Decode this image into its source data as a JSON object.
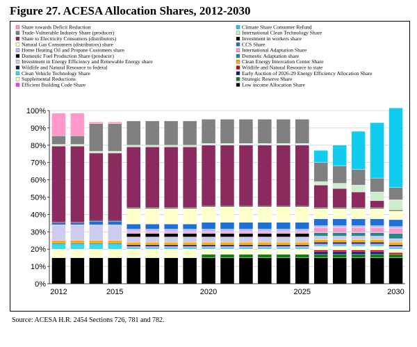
{
  "title": "Figure 27.   ACESA Allocation Shares, 2012-2030",
  "source": "Source:  ACESA H.R. 2454 Sections 726, 781 and 782.",
  "chart_data": {
    "type": "bar",
    "stacked": true,
    "title": "Figure 27.   ACESA Allocation Shares, 2012-2030",
    "xlabel": "",
    "ylabel": "",
    "ylim": [
      0,
      100
    ],
    "categories": [
      "2012",
      "2013",
      "2014",
      "2015",
      "2016",
      "2017",
      "2018",
      "2019",
      "2020",
      "2021",
      "2022",
      "2023",
      "2024",
      "2025",
      "2026",
      "2027",
      "2028",
      "2029",
      "2030"
    ],
    "x_tick_labels": [
      "2012",
      "2015",
      "2020",
      "2025",
      "2030"
    ],
    "y_tick_labels": [
      "0%",
      "10%",
      "20%",
      "30%",
      "40%",
      "50%",
      "60%",
      "70%",
      "80%",
      "90%",
      "100%"
    ],
    "legend_position": "top",
    "series": [
      {
        "name": "Low income Allocation Share",
        "color": "#000000",
        "values": [
          15,
          15,
          15,
          15,
          15,
          15,
          15,
          15,
          15,
          15,
          15,
          15,
          15,
          15,
          15,
          15,
          15,
          15,
          15
        ]
      },
      {
        "name": "Strategic Reserve Share",
        "color": "#1a7a1a",
        "values": [
          0,
          0,
          0,
          0,
          0,
          0,
          0,
          0,
          2,
          2,
          2,
          2,
          2,
          2,
          2,
          2,
          2,
          2,
          2
        ]
      },
      {
        "name": "Early Auction of 2026-29 Energy Efficiency Allocation Share",
        "color": "#0a1a80",
        "values": [
          0,
          0,
          0,
          0,
          0,
          0,
          0,
          0,
          0,
          0,
          0,
          0,
          0,
          0,
          1.5,
          1.5,
          1.5,
          1.5,
          0
        ]
      },
      {
        "name": "Wildlife and Natural Resource to state",
        "color": "#cc0000",
        "values": [
          0,
          0,
          0,
          0,
          0,
          0,
          0,
          0,
          0,
          0,
          0,
          0,
          0,
          0,
          1,
          1,
          1,
          1,
          1
        ]
      },
      {
        "name": "Supplemental Reductions",
        "color": "#ffffcc",
        "values": [
          5,
          5,
          5,
          5,
          5,
          5,
          5,
          5,
          3,
          3,
          3,
          3,
          3,
          3,
          2,
          2,
          2,
          2,
          2
        ]
      },
      {
        "name": "Clean Vehicle Technology Share",
        "color": "#33ddee",
        "values": [
          3,
          3,
          3,
          3,
          1,
          1,
          1,
          1,
          1,
          1,
          1,
          1,
          1,
          1,
          1,
          1,
          1,
          1,
          1
        ]
      },
      {
        "name": "Efficient Building Code Share",
        "color": "#ff33ff",
        "values": [
          0,
          0,
          0,
          0,
          0.5,
          0.5,
          0.5,
          0.5,
          0.5,
          0.5,
          0.5,
          0.5,
          0.5,
          0.5,
          0.5,
          0.5,
          0.5,
          0.5,
          0.5
        ]
      },
      {
        "name": "Wildlife and Natural Resource to federal",
        "color": "#002244",
        "values": [
          0.5,
          0.5,
          0.5,
          0.5,
          1,
          1,
          1,
          1,
          1,
          1,
          1,
          1,
          1,
          1,
          1,
          1,
          1,
          1,
          1
        ]
      },
      {
        "name": "Clean Energy Innovation Center Share",
        "color": "#ffaa00",
        "values": [
          1.5,
          1.5,
          1.5,
          1.5,
          1.5,
          1.5,
          1.5,
          1.5,
          1.5,
          1.5,
          1.5,
          1.5,
          1.5,
          1.5,
          1.5,
          1.5,
          1.5,
          1.5,
          1.5
        ]
      },
      {
        "name": "Investment in Energy Efficiency and Renewable Energy share",
        "color": "#ccccee",
        "values": [
          9,
          9,
          9,
          9,
          3,
          3,
          3,
          3,
          3,
          3,
          3,
          3,
          3,
          3,
          2,
          2,
          2,
          2,
          2
        ]
      },
      {
        "name": "Domestic Adaptation share",
        "color": "#228888",
        "values": [
          0,
          0,
          0,
          0,
          0,
          0,
          0,
          0,
          0,
          0,
          0,
          0,
          0,
          0,
          2,
          2,
          2,
          2,
          3
        ]
      },
      {
        "name": "Domestic Fuel Production Share (producer)",
        "color": "#000000",
        "values": [
          0,
          0,
          0,
          0,
          2,
          2,
          2,
          2,
          2,
          2,
          2,
          2,
          2,
          2,
          0,
          0,
          0,
          0,
          0
        ]
      },
      {
        "name": "International Adaptation Share",
        "color": "#ff99cc",
        "values": [
          0,
          0,
          0,
          0,
          1,
          1,
          1,
          1,
          1,
          1,
          1,
          1,
          1,
          1,
          3,
          3,
          3,
          3,
          3
        ]
      },
      {
        "name": "Home Heating Oil and Propane Customers share",
        "color": "#bbbbff",
        "values": [
          0,
          0,
          0,
          0,
          1.5,
          1.5,
          1.5,
          1.5,
          1.5,
          1.5,
          1.5,
          1.5,
          1.5,
          1.5,
          1,
          1,
          1,
          1,
          1
        ]
      },
      {
        "name": "CCS Share",
        "color": "#1e6fd8",
        "values": [
          1,
          1,
          2,
          2,
          3,
          3,
          3,
          3,
          4,
          4,
          4,
          4,
          4,
          4,
          4,
          4,
          4,
          4,
          4
        ]
      },
      {
        "name": "Natural Gas Consumers (distributors) share",
        "color": "#ffffcc",
        "values": [
          0,
          0,
          0,
          0,
          9,
          9,
          9,
          9,
          9,
          9,
          9,
          9,
          9,
          9,
          6,
          6,
          6,
          6,
          5
        ]
      },
      {
        "name": "Investment in workers share",
        "color": "#000000",
        "values": [
          0.5,
          0.5,
          0.5,
          0.5,
          0.5,
          0.5,
          0.5,
          0.5,
          0.5,
          0.5,
          0.5,
          0.5,
          0.5,
          0.5,
          0.5,
          0.5,
          0.5,
          0.5,
          0.5
        ]
      },
      {
        "name": "Share to Electricity Consumers (distributors)",
        "color": "#8b2a5e",
        "values": [
          44,
          44,
          39,
          39,
          35,
          35,
          35,
          35,
          35,
          35,
          35,
          35,
          35,
          35,
          13,
          11,
          9,
          4,
          0
        ]
      },
      {
        "name": "International Clean Technology Share",
        "color": "#cceecc",
        "values": [
          1,
          1,
          1,
          1,
          1,
          1,
          1,
          1,
          1,
          1,
          1,
          1,
          1,
          1,
          2,
          3,
          4,
          5,
          6
        ]
      },
      {
        "name": "Trade-Vulnerable Industry Share (producer)",
        "color": "#808080",
        "values": [
          5,
          5,
          16,
          16,
          14,
          14,
          14,
          14,
          14,
          14,
          14,
          14,
          14,
          14,
          11,
          10,
          9,
          8,
          7
        ]
      },
      {
        "name": "Climate Share Consumer Refund",
        "color": "#11ccee",
        "values": [
          0,
          0,
          0,
          0,
          0,
          0,
          0,
          0,
          0,
          0,
          0,
          0,
          0,
          0,
          7,
          12,
          22,
          32,
          46
        ]
      },
      {
        "name": "Share towards Deficit Reduction",
        "color": "#ff99cc",
        "values": [
          13,
          13,
          1,
          1,
          0,
          0,
          0,
          0,
          0,
          0,
          0,
          0,
          0,
          0,
          0,
          0,
          0,
          0,
          0
        ]
      }
    ],
    "legend_entries": [
      {
        "name": "Share towards Deficit Reduction",
        "color": "#ff99cc"
      },
      {
        "name": "Climate Share Consumer Refund",
        "color": "#11ccee"
      },
      {
        "name": "Trade-Vulnerable Industry Share (producer)",
        "color": "#808080"
      },
      {
        "name": "International Clean Technology Share",
        "color": "#cceecc"
      },
      {
        "name": "Share to Electricity Consumers (distributors)",
        "color": "#8b2a5e"
      },
      {
        "name": "Investment in workers share",
        "color": "#000000"
      },
      {
        "name": "Natural Gas Consumers (distributors) share",
        "color": "#ffffcc"
      },
      {
        "name": "CCS Share",
        "color": "#1e6fd8"
      },
      {
        "name": "Home Heating Oil and Propane Customers share",
        "color": "#bbbbff"
      },
      {
        "name": "International Adaptation Share",
        "color": "#ff99cc"
      },
      {
        "name": "Domestic Fuel Production Share (producer)",
        "color": "#000000"
      },
      {
        "name": "Domestic Adaptation share",
        "color": "#228888"
      },
      {
        "name": "Investment in Energy Efficiency and Renewable Energy share",
        "color": "#ccccee"
      },
      {
        "name": "Clean Energy Innovation Center Share",
        "color": "#ffaa00"
      },
      {
        "name": "Wildlife and Natural Resource to federal",
        "color": "#002244"
      },
      {
        "name": "Wildlife and Natural Resource to state",
        "color": "#cc0000"
      },
      {
        "name": "Clean Vehicle Technology Share",
        "color": "#33ddee"
      },
      {
        "name": "Early Auction of 2026-29 Energy Efficiency Allocation Share",
        "color": "#0a1a80"
      },
      {
        "name": "Supplemental Reductions",
        "color": "#ffffcc"
      },
      {
        "name": "Strategic Reserve Share",
        "color": "#1a7a1a"
      },
      {
        "name": "Efficient Building Code Share",
        "color": "#ff33ff"
      },
      {
        "name": "Low income Allocation Share",
        "color": "#000000"
      }
    ]
  }
}
